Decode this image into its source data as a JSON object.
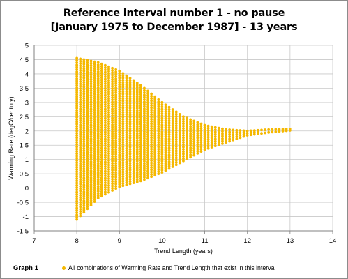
{
  "chart_data": {
    "type": "scatter",
    "title": "Reference interval number  1  -   no pause",
    "subtitle": "[January 1975 to December 1987] - 13 years",
    "xlabel": "Trend Length  (years)",
    "ylabel": "Warming Rate  (degC/century)",
    "xlim": [
      7,
      14
    ],
    "ylim": [
      -1.5,
      5
    ],
    "x_ticks": [
      "7",
      "8",
      "9",
      "10",
      "11",
      "12",
      "13",
      "14"
    ],
    "y_ticks": [
      "5",
      "4.5",
      "4",
      "3.5",
      "3",
      "2.5",
      "2",
      "1.5",
      "1",
      "0.5",
      "0",
      "-0.5",
      "-1",
      "-1.5"
    ],
    "grid": true,
    "legend": "bottom",
    "graph_label": "Graph 1",
    "series": [
      {
        "name": "All combinations of Warming Rate and Trend Length that exist in this interval",
        "color": "#f5b800",
        "envelope": {
          "x": [
            8.0,
            8.5,
            9.0,
            9.5,
            10.0,
            10.5,
            11.0,
            11.5,
            12.0,
            12.5,
            13.0
          ],
          "upper": [
            4.55,
            4.4,
            4.1,
            3.6,
            3.0,
            2.5,
            2.2,
            2.05,
            2.0,
            2.05,
            2.07
          ],
          "lower": [
            -1.1,
            -0.35,
            0.05,
            0.25,
            0.55,
            0.95,
            1.35,
            1.6,
            1.85,
            1.95,
            2.02
          ]
        },
        "x_step": 0.0833,
        "y_step": 0.08
      }
    ]
  }
}
